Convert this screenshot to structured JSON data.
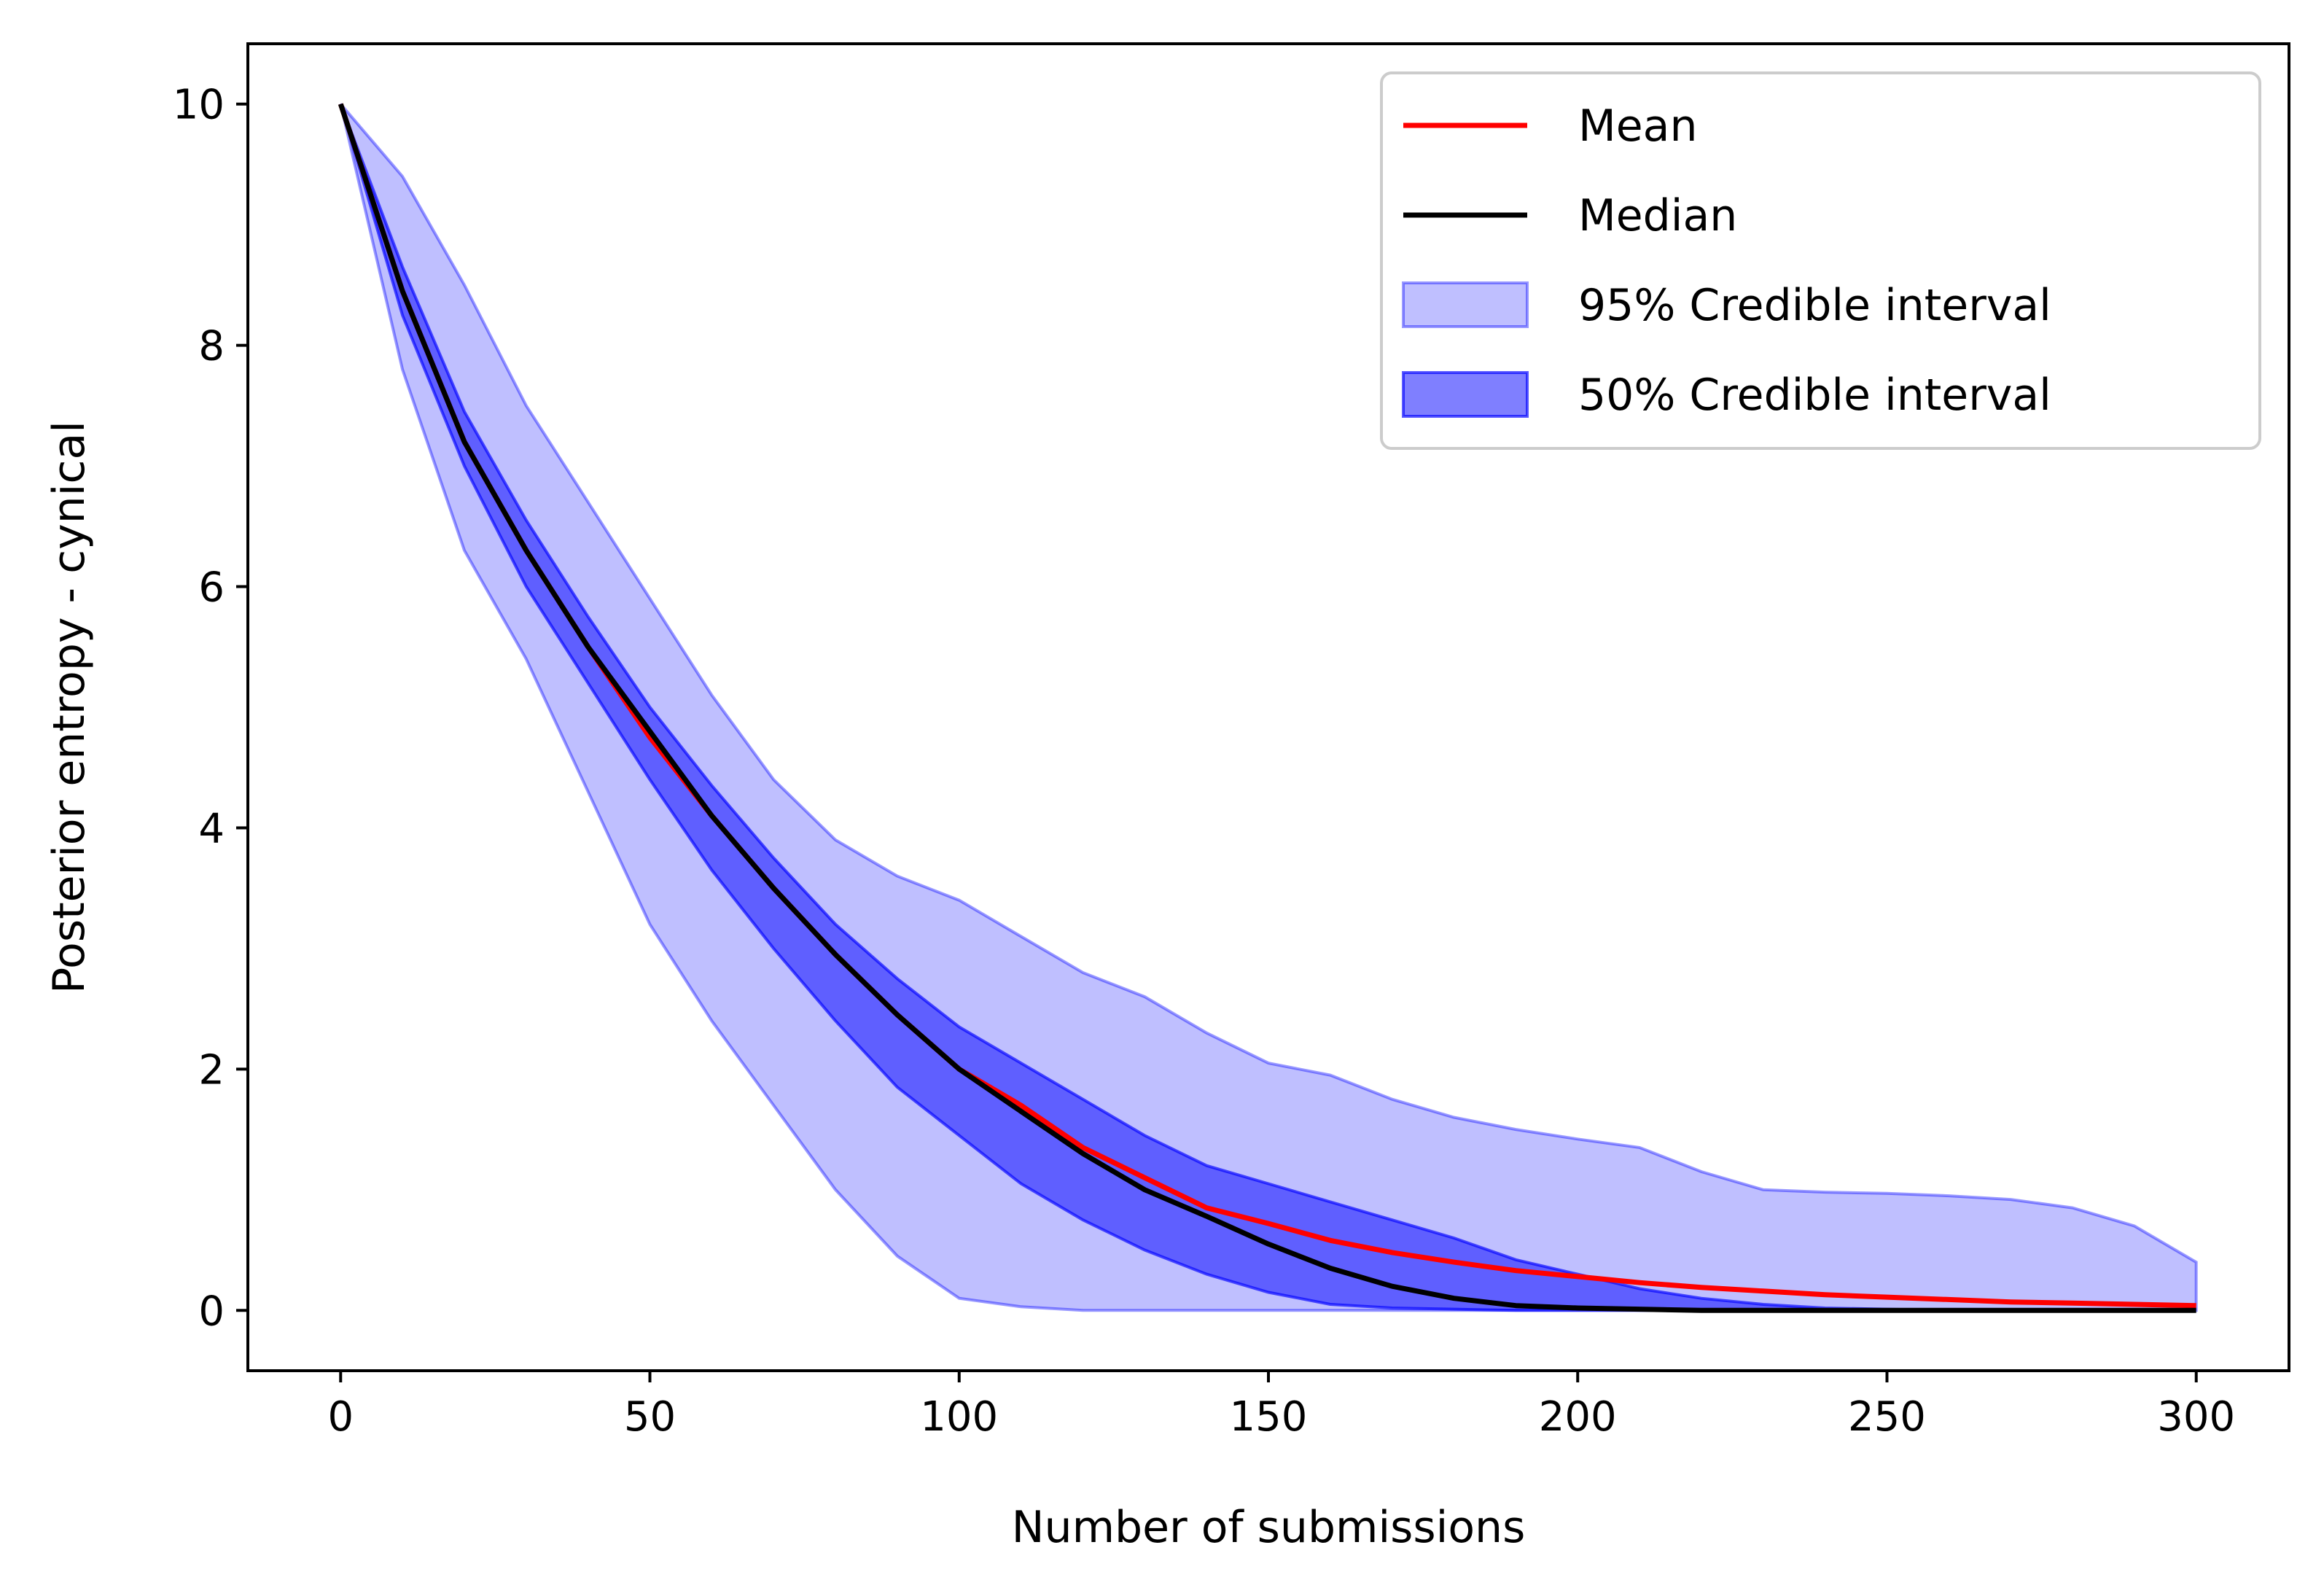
{
  "chart_data": {
    "type": "line",
    "title": "",
    "xlabel": "Number of submissions",
    "ylabel": "Posterior entropy - cynical",
    "xlim": [
      -15,
      315
    ],
    "ylim": [
      -0.5,
      10.5
    ],
    "x_ticks": [
      0,
      50,
      100,
      150,
      200,
      250,
      300
    ],
    "y_ticks": [
      0,
      2,
      4,
      6,
      8,
      10
    ],
    "x_tick_labels": [
      "0",
      "50",
      "100",
      "150",
      "200",
      "250",
      "300"
    ],
    "y_tick_labels": [
      "0",
      "2",
      "4",
      "6",
      "8",
      "10"
    ],
    "grid": false,
    "legend_position": "top-right",
    "x": [
      0,
      10,
      20,
      30,
      40,
      50,
      60,
      70,
      80,
      90,
      100,
      110,
      120,
      130,
      140,
      150,
      160,
      170,
      180,
      190,
      200,
      210,
      220,
      230,
      240,
      250,
      260,
      270,
      280,
      290,
      300
    ],
    "series": [
      {
        "name": "Mean",
        "kind": "line",
        "color": "#ff0000",
        "values": [
          10.0,
          8.45,
          7.2,
          6.3,
          5.5,
          4.75,
          4.1,
          3.5,
          2.95,
          2.45,
          2.0,
          1.7,
          1.35,
          1.1,
          0.85,
          0.72,
          0.58,
          0.48,
          0.4,
          0.33,
          0.28,
          0.23,
          0.19,
          0.16,
          0.13,
          0.11,
          0.09,
          0.07,
          0.06,
          0.05,
          0.04
        ]
      },
      {
        "name": "Median",
        "kind": "line",
        "color": "#000000",
        "values": [
          10.0,
          8.45,
          7.2,
          6.3,
          5.5,
          4.8,
          4.1,
          3.5,
          2.95,
          2.45,
          2.0,
          1.65,
          1.3,
          1.0,
          0.78,
          0.55,
          0.35,
          0.2,
          0.1,
          0.04,
          0.02,
          0.01,
          0.0,
          0.0,
          0.0,
          0.0,
          0.0,
          0.0,
          0.0,
          0.0,
          0.0
        ]
      },
      {
        "name": "95% Credible interval",
        "kind": "band",
        "color": "#0000ff",
        "opacity": 0.25,
        "lower": [
          10.0,
          7.8,
          6.3,
          5.4,
          4.3,
          3.2,
          2.4,
          1.7,
          1.0,
          0.45,
          0.1,
          0.03,
          0.0,
          0.0,
          0.0,
          0.0,
          0.0,
          0.0,
          0.0,
          0.0,
          0.0,
          0.0,
          0.0,
          0.0,
          0.0,
          0.0,
          0.0,
          0.0,
          0.0,
          0.0,
          0.0
        ],
        "upper": [
          10.0,
          9.4,
          8.5,
          7.5,
          6.7,
          5.9,
          5.1,
          4.4,
          3.9,
          3.6,
          3.4,
          3.1,
          2.8,
          2.6,
          2.3,
          2.05,
          1.95,
          1.75,
          1.6,
          1.5,
          1.42,
          1.35,
          1.15,
          1.0,
          0.98,
          0.97,
          0.95,
          0.92,
          0.85,
          0.7,
          0.4
        ]
      },
      {
        "name": "50% Credible interval",
        "kind": "band",
        "color": "#0000ff",
        "opacity": 0.5,
        "lower": [
          10.0,
          8.25,
          7.0,
          6.0,
          5.2,
          4.4,
          3.65,
          3.0,
          2.4,
          1.85,
          1.45,
          1.05,
          0.75,
          0.5,
          0.3,
          0.15,
          0.05,
          0.02,
          0.01,
          0.0,
          0.0,
          0.0,
          0.0,
          0.0,
          0.0,
          0.0,
          0.0,
          0.0,
          0.0,
          0.0,
          0.0
        ],
        "upper": [
          10.0,
          8.65,
          7.45,
          6.55,
          5.75,
          5.0,
          4.35,
          3.75,
          3.2,
          2.75,
          2.35,
          2.05,
          1.75,
          1.45,
          1.2,
          1.05,
          0.9,
          0.75,
          0.6,
          0.42,
          0.3,
          0.18,
          0.1,
          0.05,
          0.02,
          0.01,
          0.0,
          0.0,
          0.0,
          0.0,
          0.0
        ]
      }
    ]
  }
}
